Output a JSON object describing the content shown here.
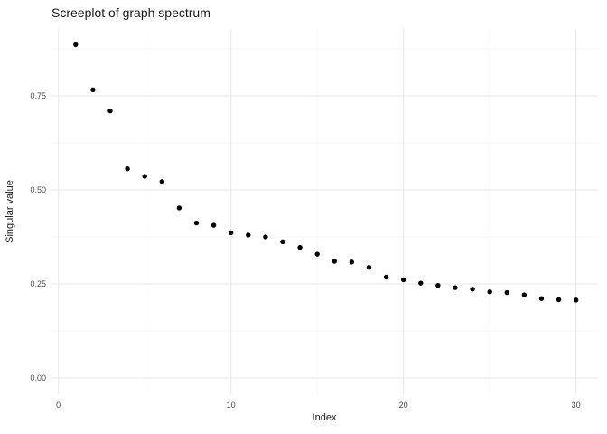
{
  "chart_data": {
    "type": "scatter",
    "title": "Screeplot of graph spectrum",
    "xlabel": "Index",
    "ylabel": "Singular value",
    "x": [
      1,
      2,
      3,
      4,
      5,
      6,
      7,
      8,
      9,
      10,
      11,
      12,
      13,
      14,
      15,
      16,
      17,
      18,
      19,
      20,
      21,
      22,
      23,
      24,
      25,
      26,
      27,
      28,
      29,
      30
    ],
    "y": [
      0.886,
      0.766,
      0.71,
      0.556,
      0.536,
      0.522,
      0.452,
      0.412,
      0.406,
      0.386,
      0.38,
      0.375,
      0.362,
      0.347,
      0.329,
      0.31,
      0.308,
      0.294,
      0.268,
      0.261,
      0.252,
      0.246,
      0.24,
      0.236,
      0.229,
      0.227,
      0.221,
      0.211,
      0.208,
      0.207
    ],
    "xlim": [
      -0.455,
      31.3
    ],
    "ylim": [
      -0.0445,
      0.929
    ],
    "x_ticks": {
      "values": [
        0,
        10,
        20,
        30
      ],
      "labels": [
        "0",
        "10",
        "20",
        "30"
      ]
    },
    "y_ticks": {
      "values": [
        0.0,
        0.25,
        0.5,
        0.75
      ],
      "labels": [
        "0.00",
        "0.25",
        "0.50",
        "0.75"
      ]
    },
    "x_minor": [
      5,
      15,
      25
    ],
    "y_minor": [
      0.125,
      0.375,
      0.625,
      0.875
    ],
    "grid": true,
    "legend": "none",
    "colors": {
      "point": "#000000",
      "grid_major": "#ebebeb",
      "grid_minor": "#f2f2f2",
      "tick_label": "#4d4d4d",
      "title": "#1a1a1a",
      "background": "#ffffff"
    },
    "point_radius_px": 2.7
  }
}
